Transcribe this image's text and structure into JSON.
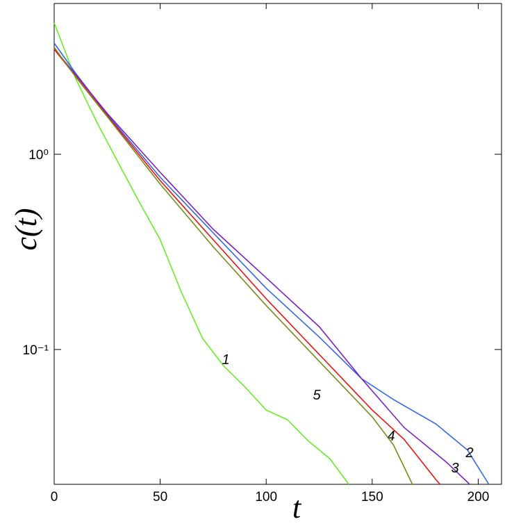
{
  "chart_data": {
    "type": "line",
    "x_label": "t",
    "y_label": "c(t)",
    "log_y": true,
    "xlim": [
      0,
      211
    ],
    "xticks": [
      0,
      50,
      100,
      150,
      200
    ],
    "ylim": [
      0.0204,
      5.92
    ],
    "yticks": [
      {
        "value": 0.1,
        "label": "10⁻¹"
      },
      {
        "value": 1,
        "label": "10⁰"
      }
    ],
    "series": [
      {
        "name": "1",
        "color": "#66ee22",
        "x": [
          0,
          10,
          20,
          30,
          40,
          50,
          60,
          70,
          80,
          90,
          100,
          110,
          120,
          130,
          139
        ],
        "values": [
          4.71,
          2.46,
          1.47,
          0.914,
          0.573,
          0.365,
          0.197,
          0.114,
          0.0822,
          0.0643,
          0.049,
          0.0437,
          0.0339,
          0.0276,
          0.0204
        ]
      },
      {
        "name": "2",
        "color": "#3366ee",
        "x": [
          0,
          10,
          25,
          50,
          75,
          100,
          125,
          145,
          160,
          180,
          195,
          205
        ],
        "values": [
          3.71,
          2.61,
          1.6,
          0.763,
          0.396,
          0.206,
          0.116,
          0.0709,
          0.0555,
          0.0416,
          0.0305,
          0.0204
        ]
      },
      {
        "name": "3",
        "color": "#7a1fcc",
        "x": [
          0,
          10,
          25,
          50,
          75,
          100,
          125,
          145,
          165,
          185,
          196
        ],
        "values": [
          3.47,
          2.57,
          1.62,
          0.808,
          0.413,
          0.233,
          0.131,
          0.0709,
          0.0399,
          0.0265,
          0.0204
        ]
      },
      {
        "name": "4",
        "color": "#ee1111",
        "x": [
          0,
          10,
          25,
          50,
          75,
          100,
          125,
          150,
          165,
          180,
          182
        ],
        "values": [
          3.45,
          2.52,
          1.58,
          0.733,
          0.365,
          0.182,
          0.0944,
          0.049,
          0.0347,
          0.0216,
          0.0204
        ]
      },
      {
        "name": "5",
        "color": "#7a8a1a",
        "x": [
          0,
          10,
          25,
          50,
          75,
          100,
          125,
          150,
          160,
          169
        ],
        "values": [
          3.53,
          2.5,
          1.56,
          0.703,
          0.336,
          0.168,
          0.0871,
          0.0452,
          0.0325,
          0.0204
        ]
      }
    ]
  }
}
